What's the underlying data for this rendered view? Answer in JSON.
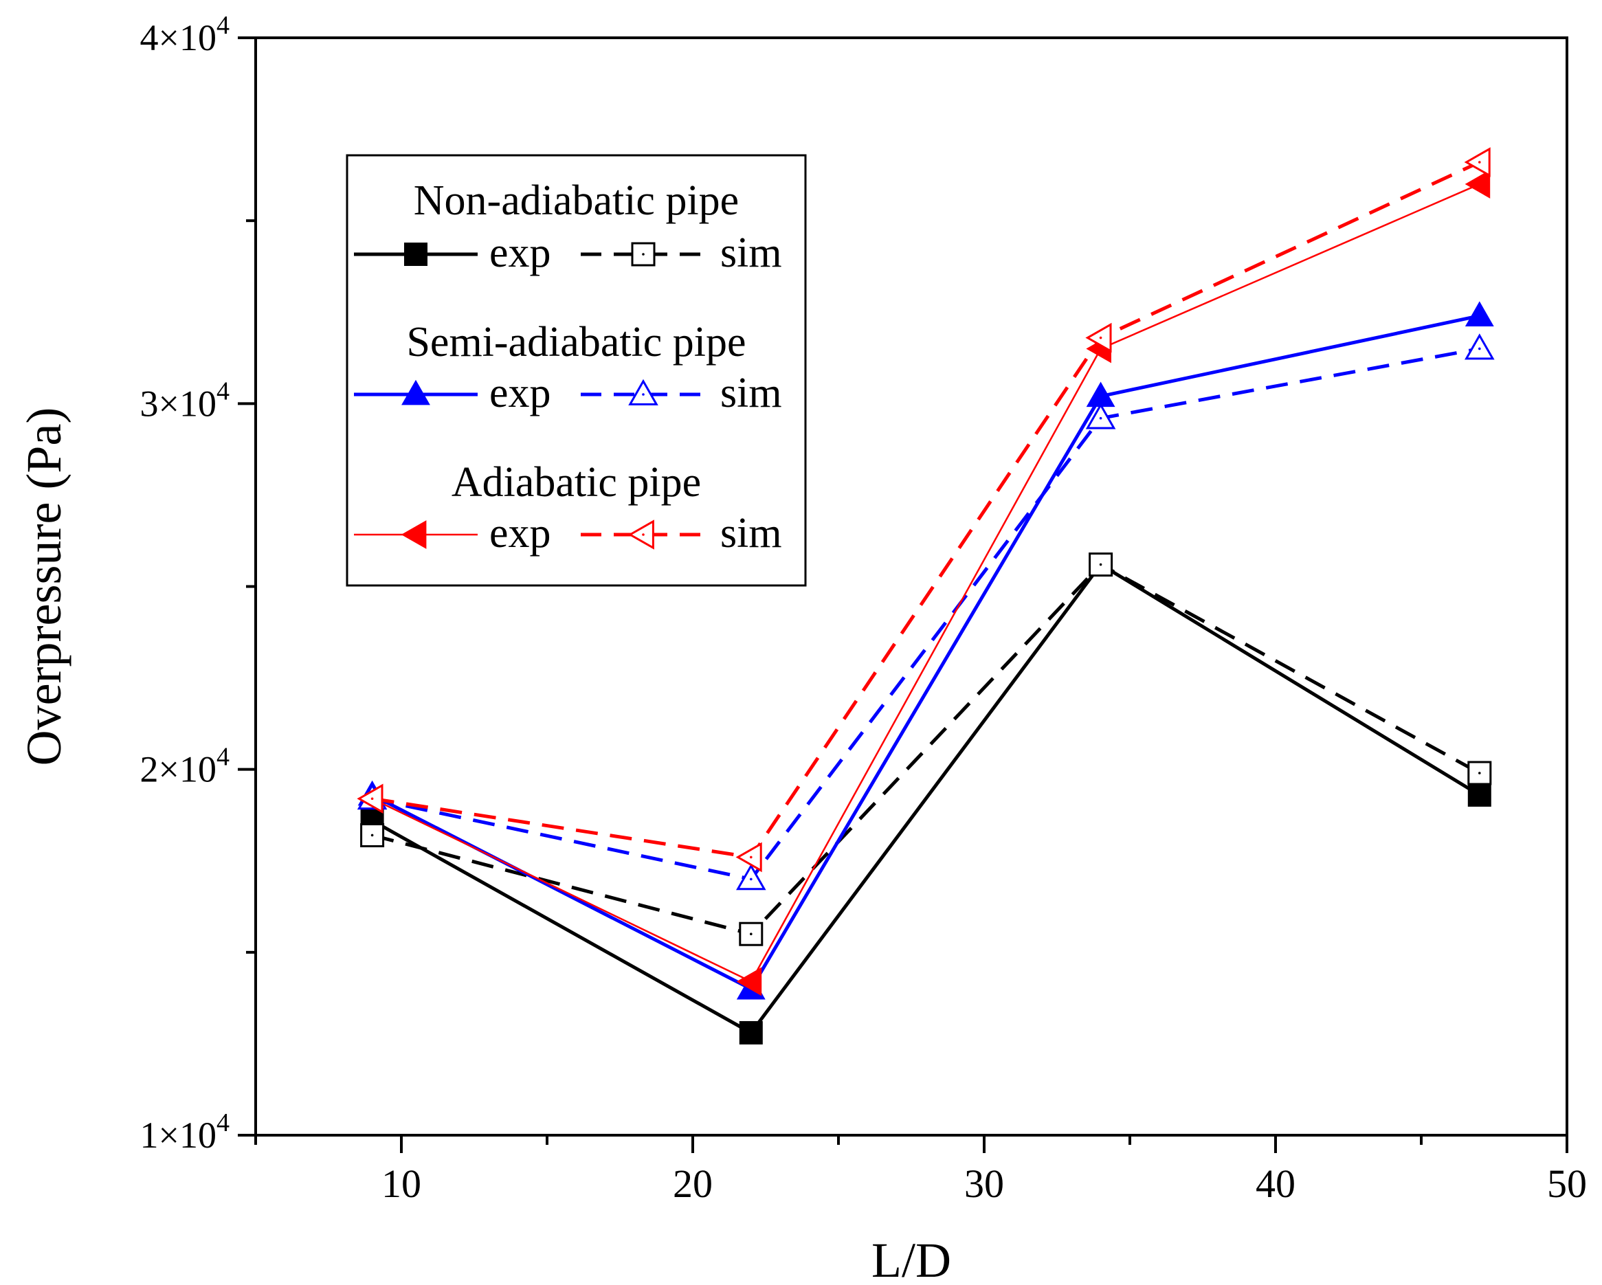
{
  "chart_data": {
    "type": "line",
    "title": "",
    "xlabel": "L/D",
    "ylabel": "Overpressure (Pa)",
    "xlim": [
      5,
      50
    ],
    "ylim": [
      10000,
      40000
    ],
    "x_ticks": [
      10,
      20,
      30,
      40,
      50
    ],
    "y_ticks": [
      {
        "value": 10000,
        "mantissa": "1×10",
        "exponent": "4"
      },
      {
        "value": 20000,
        "mantissa": "2×10",
        "exponent": "4"
      },
      {
        "value": 30000,
        "mantissa": "3×10",
        "exponent": "4"
      },
      {
        "value": 40000,
        "mantissa": "4×10",
        "exponent": "4"
      }
    ],
    "x": [
      9,
      22,
      34,
      47
    ],
    "series": [
      {
        "name": "Non-adiabatic pipe exp",
        "group": "Non-adiabatic pipe",
        "kind": "exp",
        "color": "#000000",
        "dashed": false,
        "marker": "square",
        "filled": true,
        "values": [
          18600,
          12800,
          25600,
          19300
        ]
      },
      {
        "name": "Non-adiabatic pipe sim",
        "group": "Non-adiabatic pipe",
        "kind": "sim",
        "color": "#000000",
        "dashed": true,
        "marker": "square",
        "filled": false,
        "values": [
          18200,
          15500,
          25600,
          19900
        ]
      },
      {
        "name": "Semi-adiabatic pipe exp",
        "group": "Semi-adiabatic pipe",
        "kind": "exp",
        "color": "#0000ff",
        "dashed": false,
        "marker": "triangle-up",
        "filled": true,
        "values": [
          19300,
          14000,
          30200,
          32400
        ]
      },
      {
        "name": "Semi-adiabatic pipe sim",
        "group": "Semi-adiabatic pipe",
        "kind": "sim",
        "color": "#0000ff",
        "dashed": true,
        "marker": "triangle-up",
        "filled": false,
        "values": [
          19200,
          17000,
          29600,
          31500
        ]
      },
      {
        "name": "Adiabatic pipe exp",
        "group": "Adiabatic pipe",
        "kind": "exp",
        "color": "#ff0000",
        "dashed": false,
        "marker": "triangle-left",
        "filled": true,
        "values": [
          19200,
          14200,
          31500,
          36000
        ]
      },
      {
        "name": "Adiabatic pipe sim",
        "group": "Adiabatic pipe",
        "kind": "sim",
        "color": "#ff0000",
        "dashed": true,
        "marker": "triangle-left",
        "filled": false,
        "values": [
          19200,
          17600,
          31800,
          36600
        ]
      }
    ],
    "legend": {
      "placement": "upper-left",
      "groups": [
        {
          "title": "Non-adiabatic pipe",
          "exp_label": "exp",
          "sim_label": "sim"
        },
        {
          "title": "Semi-adiabatic pipe",
          "exp_label": "exp",
          "sim_label": "sim"
        },
        {
          "title": "Adiabatic pipe",
          "exp_label": "exp",
          "sim_label": "sim"
        }
      ]
    }
  }
}
